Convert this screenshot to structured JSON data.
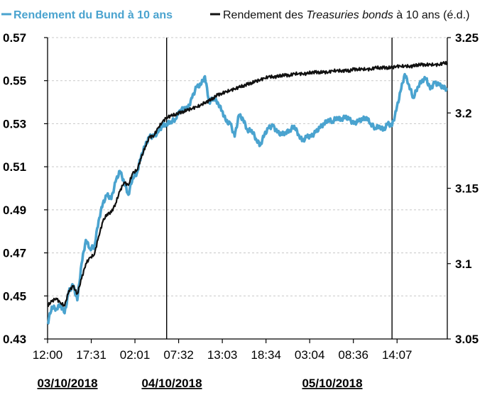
{
  "chart_data": {
    "type": "line",
    "title": "",
    "legend": {
      "position": "top",
      "entries": [
        {
          "label": "Rendement du Bund à 10 ans",
          "color": "#4aa3cf",
          "axis": "left"
        },
        {
          "label_pre": "Rendement des ",
          "label_italic": "Treasuries bonds",
          "label_post": " à 10 ans (é.d.)",
          "color": "#111111",
          "axis": "right"
        }
      ]
    },
    "x_ticks": [
      "12:00",
      "17:31",
      "02:01",
      "07:32",
      "13:03",
      "18:34",
      "03:04",
      "08:36",
      "14:07"
    ],
    "date_labels": [
      "03/10/2018",
      "04/10/2018",
      "05/10/2018"
    ],
    "y_left": {
      "ticks": [
        "0.43",
        "0.45",
        "0.47",
        "0.49",
        "0.51",
        "0.53",
        "0.55",
        "0.57"
      ],
      "range": [
        0.43,
        0.57
      ]
    },
    "y_right": {
      "ticks": [
        "3.05",
        "3.1",
        "3.15",
        "3.2",
        "3.25"
      ],
      "range": [
        3.05,
        3.25
      ]
    },
    "x_range": [
      0,
      47
    ],
    "separators_x": [
      14,
      40.5
    ],
    "grid": "horizontal-dashed",
    "series": [
      {
        "name": "Rendement du Bund à 10 ans",
        "axis": "left",
        "color": "#4aa3cf",
        "x": [
          0,
          0.5,
          1,
          1.5,
          2,
          2.5,
          3,
          3.5,
          4,
          4.5,
          5,
          5.5,
          6,
          6.5,
          7,
          7.5,
          8,
          8.5,
          9,
          9.5,
          10,
          10.5,
          11,
          11.5,
          12,
          12.5,
          13,
          13.5,
          14,
          14.5,
          15,
          15.5,
          16,
          16.5,
          17,
          17.5,
          18,
          18.5,
          19,
          19.5,
          20,
          20.5,
          21,
          21.5,
          22,
          22.5,
          23,
          23.5,
          24,
          24.5,
          25,
          25.5,
          26,
          26.5,
          27,
          27.5,
          28,
          28.5,
          29,
          29.5,
          30,
          30.5,
          31,
          31.5,
          32,
          32.5,
          33,
          33.5,
          34,
          34.5,
          35,
          35.5,
          36,
          36.5,
          37,
          37.5,
          38,
          38.5,
          39,
          39.5,
          40,
          40.5,
          41,
          41.5,
          42,
          42.5,
          43,
          43.5,
          44,
          44.5,
          45,
          45.5,
          46,
          46.5,
          47
        ],
        "values": [
          0.437,
          0.445,
          0.444,
          0.446,
          0.442,
          0.452,
          0.455,
          0.448,
          0.465,
          0.476,
          0.472,
          0.473,
          0.485,
          0.493,
          0.497,
          0.495,
          0.503,
          0.508,
          0.503,
          0.497,
          0.505,
          0.507,
          0.515,
          0.52,
          0.524,
          0.524,
          0.526,
          0.529,
          0.53,
          0.531,
          0.532,
          0.536,
          0.537,
          0.537,
          0.542,
          0.547,
          0.548,
          0.552,
          0.54,
          0.542,
          0.54,
          0.536,
          0.531,
          0.53,
          0.524,
          0.534,
          0.532,
          0.527,
          0.527,
          0.523,
          0.52,
          0.525,
          0.528,
          0.529,
          0.526,
          0.525,
          0.526,
          0.527,
          0.529,
          0.525,
          0.522,
          0.524,
          0.524,
          0.526,
          0.528,
          0.53,
          0.532,
          0.531,
          0.533,
          0.532,
          0.533,
          0.532,
          0.53,
          0.531,
          0.532,
          0.533,
          0.53,
          0.528,
          0.529,
          0.527,
          0.53,
          0.529,
          0.536,
          0.545,
          0.553,
          0.548,
          0.542,
          0.547,
          0.55,
          0.551,
          0.546,
          0.549,
          0.548,
          0.547,
          0.546
        ]
      },
      {
        "name": "Rendement des Treasuries bonds à 10 ans (é.d.)",
        "axis": "right",
        "color": "#111111",
        "x": [
          0,
          0.5,
          1,
          1.5,
          2,
          2.5,
          3,
          3.5,
          4,
          4.5,
          5,
          5.5,
          6,
          6.5,
          7,
          7.5,
          8,
          8.5,
          9,
          9.5,
          10,
          10.5,
          11,
          11.5,
          12,
          12.5,
          13,
          13.5,
          14,
          14.5,
          15,
          15.5,
          16,
          16.5,
          17,
          17.5,
          18,
          18.5,
          19,
          19.5,
          20,
          20.5,
          21,
          21.5,
          22,
          22.5,
          23,
          23.5,
          24,
          24.5,
          25,
          25.5,
          26,
          26.5,
          27,
          27.5,
          28,
          28.5,
          29,
          29.5,
          30,
          30.5,
          31,
          31.5,
          32,
          32.5,
          33,
          33.5,
          34,
          34.5,
          35,
          35.5,
          36,
          36.5,
          37,
          37.5,
          38,
          38.5,
          39,
          39.5,
          40,
          40.5,
          41,
          41.5,
          42,
          42.5,
          43,
          43.5,
          44,
          44.5,
          45,
          45.5,
          46,
          46.5,
          47
        ],
        "values": [
          3.072,
          3.075,
          3.077,
          3.074,
          3.072,
          3.082,
          3.085,
          3.08,
          3.09,
          3.1,
          3.104,
          3.106,
          3.118,
          3.128,
          3.133,
          3.134,
          3.14,
          3.148,
          3.154,
          3.152,
          3.16,
          3.162,
          3.17,
          3.178,
          3.184,
          3.185,
          3.19,
          3.194,
          3.197,
          3.198,
          3.199,
          3.2,
          3.201,
          3.202,
          3.203,
          3.204,
          3.205,
          3.207,
          3.208,
          3.21,
          3.212,
          3.213,
          3.214,
          3.215,
          3.216,
          3.217,
          3.218,
          3.219,
          3.22,
          3.221,
          3.222,
          3.223,
          3.224,
          3.224,
          3.224,
          3.225,
          3.225,
          3.225,
          3.226,
          3.226,
          3.226,
          3.226,
          3.227,
          3.227,
          3.227,
          3.227,
          3.227,
          3.228,
          3.228,
          3.228,
          3.228,
          3.228,
          3.229,
          3.229,
          3.229,
          3.229,
          3.229,
          3.23,
          3.23,
          3.23,
          3.23,
          3.23,
          3.231,
          3.231,
          3.231,
          3.231,
          3.231,
          3.232,
          3.232,
          3.232,
          3.232,
          3.232,
          3.232,
          3.233,
          3.233
        ]
      }
    ]
  }
}
